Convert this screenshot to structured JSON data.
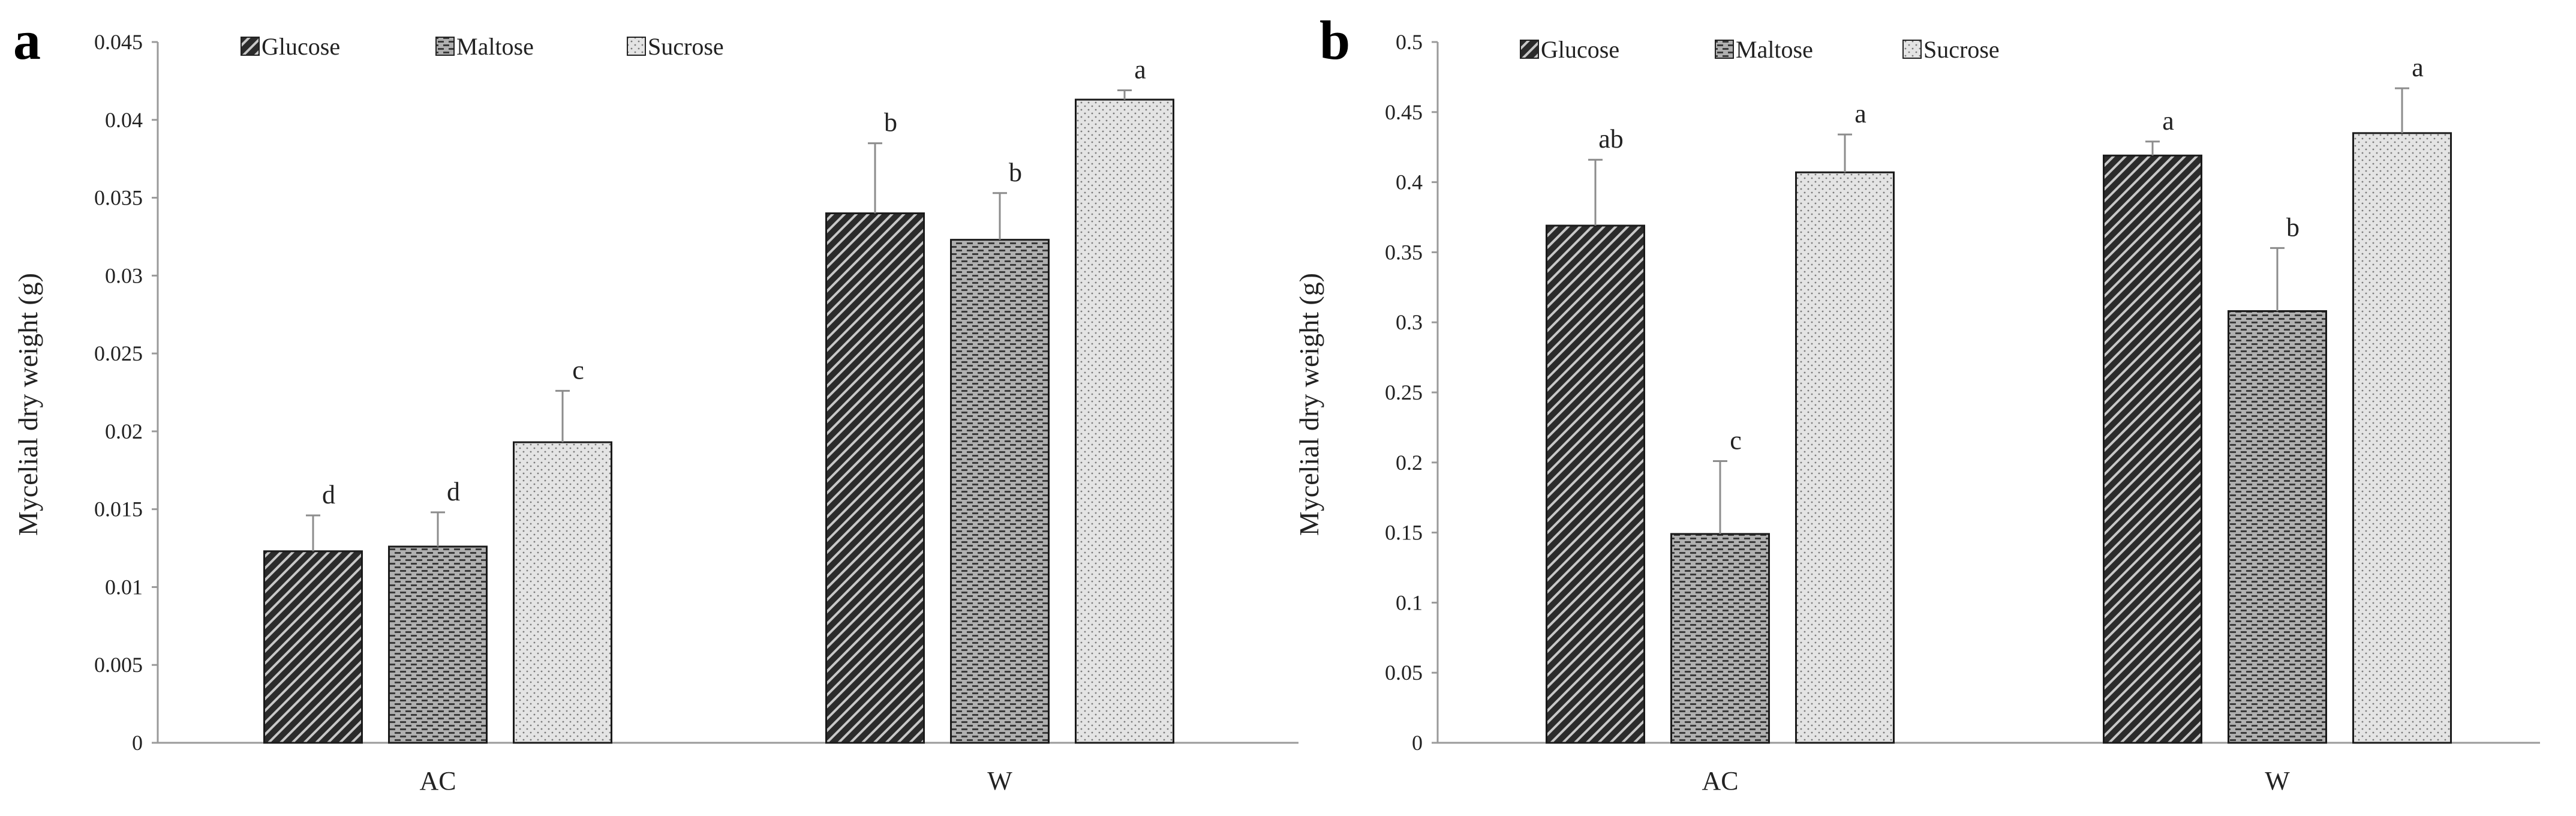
{
  "colors": {
    "glucose_fill": "#2b2b2b",
    "maltose_fill": "#9a9a9a",
    "sucrose_fill": "#dcdcdc",
    "axis": "#9a9a9a",
    "error_bar": "#8c8c8c",
    "text": "#222222"
  },
  "chart_data": [
    {
      "type": "bar",
      "panel_label": "a",
      "title": "",
      "xlabel": "",
      "ylabel": "Mycelial dry weight (g)",
      "categories": [
        "AC",
        "W"
      ],
      "ylim": [
        0,
        0.045
      ],
      "yticks": [
        0,
        0.005,
        0.01,
        0.015,
        0.02,
        0.025,
        0.03,
        0.035,
        0.04,
        0.045
      ],
      "ytick_labels": [
        "0",
        "0.005",
        "0.01",
        "0.015",
        "0.02",
        "0.025",
        "0.03",
        "0.035",
        "0.04",
        "0.045"
      ],
      "grid": false,
      "legend_position": "top-left",
      "series": [
        {
          "name": "Glucose",
          "pattern": "diagonal-hatch",
          "values": [
            0.0123,
            0.034
          ],
          "errors": [
            0.0023,
            0.0045
          ],
          "labels": [
            "d",
            "b"
          ]
        },
        {
          "name": "Maltose",
          "pattern": "dash-grid",
          "values": [
            0.0126,
            0.0323
          ],
          "errors": [
            0.0022,
            0.003
          ],
          "labels": [
            "d",
            "b"
          ]
        },
        {
          "name": "Sucrose",
          "pattern": "dots",
          "values": [
            0.0193,
            0.0413
          ],
          "errors": [
            0.0033,
            0.0006
          ],
          "labels": [
            "c",
            "a"
          ]
        }
      ]
    },
    {
      "type": "bar",
      "panel_label": "b",
      "title": "",
      "xlabel": "",
      "ylabel": "Mycelial dry weight (g)",
      "categories": [
        "AC",
        "W"
      ],
      "ylim": [
        0,
        0.5
      ],
      "yticks": [
        0,
        0.05,
        0.1,
        0.15,
        0.2,
        0.25,
        0.3,
        0.35,
        0.4,
        0.45,
        0.5
      ],
      "ytick_labels": [
        "0",
        "0.05",
        "0.1",
        "0.15",
        "0.2",
        "0.25",
        "0.3",
        "0.35",
        "0.4",
        "0.45",
        "0.5"
      ],
      "grid": false,
      "legend_position": "top-left",
      "series": [
        {
          "name": "Glucose",
          "pattern": "diagonal-hatch",
          "values": [
            0.369,
            0.419
          ],
          "errors": [
            0.047,
            0.01
          ],
          "labels": [
            "ab",
            "a"
          ]
        },
        {
          "name": "Maltose",
          "pattern": "dash-grid",
          "values": [
            0.149,
            0.308
          ],
          "errors": [
            0.052,
            0.045
          ],
          "labels": [
            "c",
            "b"
          ]
        },
        {
          "name": "Sucrose",
          "pattern": "dots",
          "values": [
            0.407,
            0.435
          ],
          "errors": [
            0.027,
            0.032
          ],
          "labels": [
            "a",
            "a"
          ]
        }
      ]
    }
  ]
}
